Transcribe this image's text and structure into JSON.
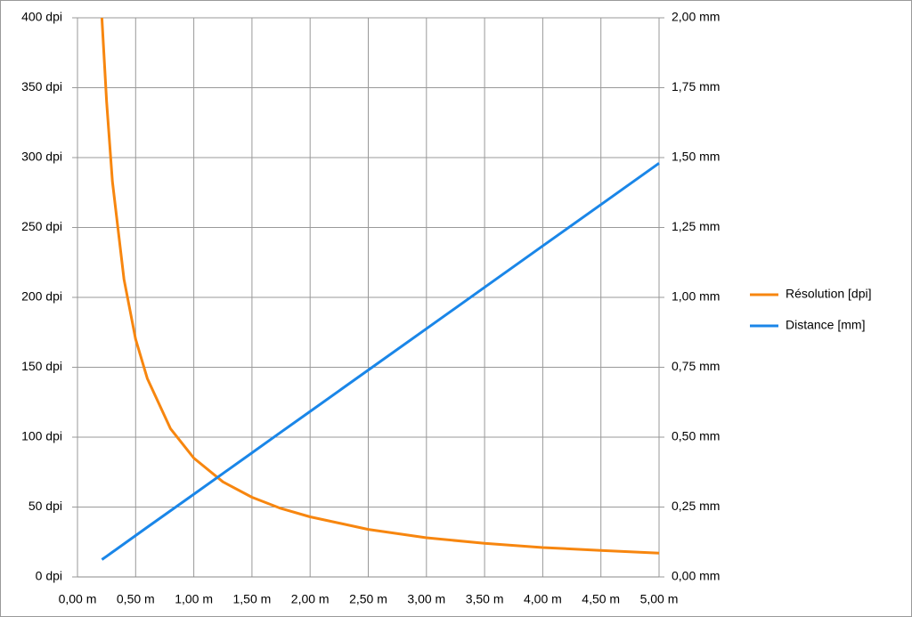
{
  "chart_data": {
    "type": "line",
    "x": [
      0.21,
      0.25,
      0.3,
      0.4,
      0.5,
      0.6,
      0.8,
      1.0,
      1.25,
      1.5,
      1.75,
      2.0,
      2.5,
      3.0,
      3.5,
      4.0,
      4.5,
      5.0
    ],
    "series": [
      {
        "name": "Résolution [dpi]",
        "color": "#f7860f",
        "axis": "y",
        "values": [
          400,
          340,
          283,
          213,
          170,
          142,
          106,
          85,
          68,
          57,
          49,
          43,
          34,
          28,
          24,
          21,
          19,
          17
        ]
      },
      {
        "name": "Distance [mm]",
        "color": "#1a86e8",
        "axis": "y2",
        "values": [
          0.062,
          0.074,
          0.089,
          0.118,
          0.148,
          0.178,
          0.237,
          0.296,
          0.37,
          0.444,
          0.518,
          0.592,
          0.74,
          0.888,
          1.036,
          1.184,
          1.332,
          1.48
        ]
      }
    ],
    "xlim": [
      0,
      5
    ],
    "xticks": [
      {
        "value": 0,
        "label": "0,00 m"
      },
      {
        "value": 0.5,
        "label": "0,50 m"
      },
      {
        "value": 1,
        "label": "1,00 m"
      },
      {
        "value": 1.5,
        "label": "1,50 m"
      },
      {
        "value": 2,
        "label": "2,00 m"
      },
      {
        "value": 2.5,
        "label": "2,50 m"
      },
      {
        "value": 3,
        "label": "3,00 m"
      },
      {
        "value": 3.5,
        "label": "3,50 m"
      },
      {
        "value": 4,
        "label": "4,00 m"
      },
      {
        "value": 4.5,
        "label": "4,50 m"
      },
      {
        "value": 5,
        "label": "5,00 m"
      }
    ],
    "ylim": [
      0,
      400
    ],
    "yticks": [
      {
        "value": 0,
        "label": "0 dpi"
      },
      {
        "value": 50,
        "label": "50 dpi"
      },
      {
        "value": 100,
        "label": "100 dpi"
      },
      {
        "value": 150,
        "label": "150 dpi"
      },
      {
        "value": 200,
        "label": "200 dpi"
      },
      {
        "value": 250,
        "label": "250 dpi"
      },
      {
        "value": 300,
        "label": "300 dpi"
      },
      {
        "value": 350,
        "label": "350 dpi"
      },
      {
        "value": 400,
        "label": "400 dpi"
      }
    ],
    "y2lim": [
      0,
      2
    ],
    "y2ticks": [
      {
        "value": 0,
        "label": "0,00 mm"
      },
      {
        "value": 0.25,
        "label": "0,25 mm"
      },
      {
        "value": 0.5,
        "label": "0,50 mm"
      },
      {
        "value": 0.75,
        "label": "0,75 mm"
      },
      {
        "value": 1,
        "label": "1,00 mm"
      },
      {
        "value": 1.25,
        "label": "1,25 mm"
      },
      {
        "value": 1.5,
        "label": "1,50 mm"
      },
      {
        "value": 1.75,
        "label": "1,75 mm"
      },
      {
        "value": 2,
        "label": "2,00 mm"
      }
    ],
    "grid": true,
    "legend": "right"
  }
}
